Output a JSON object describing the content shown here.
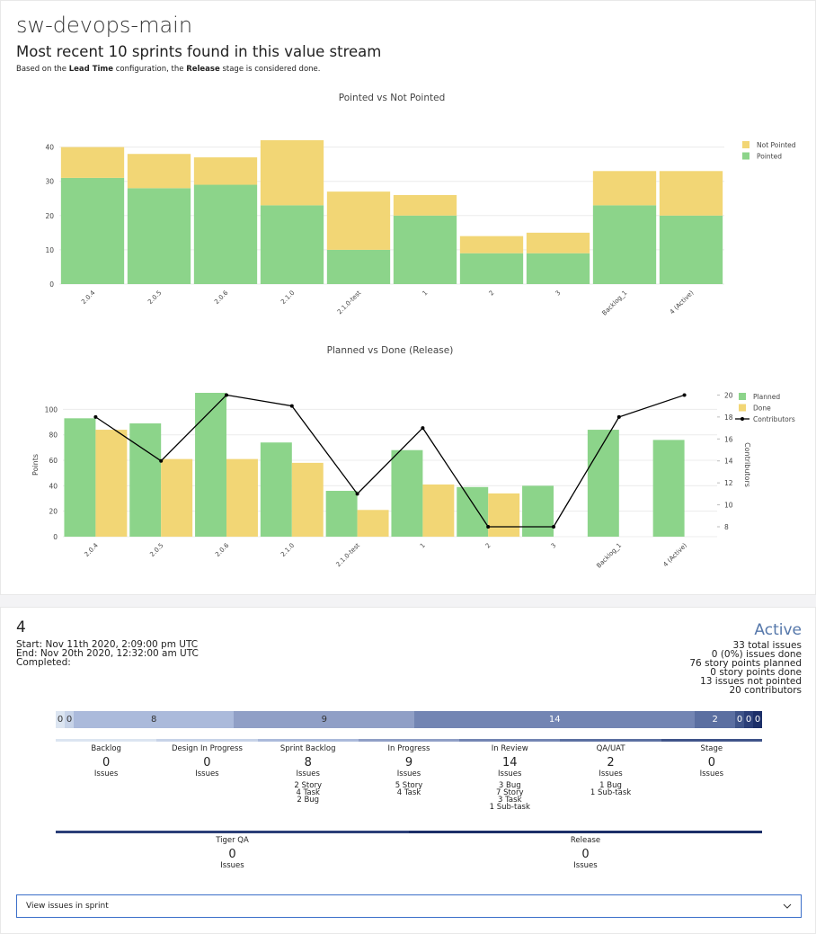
{
  "header": {
    "title": "sw-devops-main",
    "subtitle": "Most recent 10 sprints found in this value stream",
    "note": [
      {
        "text": "Based on the "
      },
      {
        "text": "Lead Time",
        "bold": true
      },
      {
        "text": " configuration, the "
      },
      {
        "text": "Release",
        "bold": true
      },
      {
        "text": " stage is considered done."
      }
    ]
  },
  "chart_data": [
    {
      "type": "bar",
      "stacked": true,
      "title": "Pointed vs Not Pointed",
      "categories": [
        "2.0.4",
        "2.0.5",
        "2.0.6",
        "2.1.0",
        "2.1.0-test",
        "1",
        "2",
        "3",
        "Backlog_1",
        "4 (Active)"
      ],
      "series": [
        {
          "name": "Pointed",
          "color": "#8cd48a",
          "values": [
            31,
            28,
            29,
            23,
            10,
            20,
            9,
            9,
            23,
            20
          ]
        },
        {
          "name": "Not Pointed",
          "color": "#f2d675",
          "values": [
            9,
            10,
            8,
            19,
            17,
            6,
            5,
            6,
            10,
            13
          ]
        }
      ],
      "ylim": [
        0,
        42
      ],
      "yticks": [
        0,
        10,
        20,
        30,
        40
      ],
      "grid": true,
      "legend": "right"
    },
    {
      "type": "bar",
      "stacked": false,
      "title": "Planned vs Done (Release)",
      "ylabel": "Points",
      "y2label": "Contributors",
      "categories": [
        "2.0.4",
        "2.0.5",
        "2.0.6",
        "2.1.0",
        "2.1.0-test",
        "1",
        "2",
        "3",
        "Backlog_1",
        "4 (Active)"
      ],
      "series": [
        {
          "name": "Planned",
          "color": "#8cd48a",
          "values": [
            93,
            89,
            113,
            74,
            36,
            68,
            39,
            40,
            84,
            76
          ]
        },
        {
          "name": "Done",
          "color": "#f2d675",
          "values": [
            84,
            61,
            61,
            58,
            21,
            41,
            34,
            0,
            0,
            0
          ]
        },
        {
          "name": "Contributors",
          "type": "line",
          "axis": "y2",
          "color": "#000000",
          "values": [
            18,
            14,
            20,
            19,
            11,
            17,
            8,
            8,
            18,
            20
          ]
        }
      ],
      "ylim": [
        0,
        113
      ],
      "yticks": [
        0,
        20,
        40,
        60,
        80,
        100
      ],
      "y2lim": [
        7.1,
        20.2
      ],
      "y2ticks": [
        8,
        10,
        12,
        14,
        16,
        18,
        20
      ],
      "grid": true,
      "legend": "right"
    }
  ],
  "sprint": {
    "name": "4",
    "status": "Active",
    "dates": [
      "Start: Nov 11th 2020, 2:09:00 pm UTC",
      "End: Nov 20th 2020, 12:32:00 am UTC",
      "Completed:"
    ],
    "stats": [
      "33 total issues",
      "0 (0%) issues done",
      "76 story points planned",
      "0 story points done",
      "13 issues not pointed",
      "20 contributors"
    ],
    "issues_label": "Issues",
    "stages": [
      {
        "name": "Backlog",
        "count": 0,
        "color": "#dce5f1"
      },
      {
        "name": "Design In Progress",
        "count": 0,
        "color": "#c7d3e8"
      },
      {
        "name": "Sprint Backlog",
        "count": 8,
        "color": "#abbadb",
        "breakdown": [
          "2 Story",
          "4 Task",
          "2 Bug"
        ]
      },
      {
        "name": "In Progress",
        "count": 9,
        "color": "#909fc6",
        "breakdown": [
          "5 Story",
          "4 Task"
        ]
      },
      {
        "name": "In Review",
        "count": 14,
        "color": "#7385b3",
        "breakdown": [
          "3 Bug",
          "7 Story",
          "3 Task",
          "1 Sub-task"
        ]
      },
      {
        "name": "QA/UAT",
        "count": 2,
        "color": "#5b6fa1",
        "breakdown": [
          "1 Bug",
          "1 Sub-task"
        ]
      },
      {
        "name": "Stage",
        "count": 0,
        "color": "#3f5489"
      },
      {
        "name": "Tiger QA",
        "count": 0,
        "color": "#2b3f78"
      },
      {
        "name": "Release",
        "count": 0,
        "color": "#1c2f68"
      }
    ]
  },
  "dropdown": {
    "label": "View issues in sprint"
  }
}
